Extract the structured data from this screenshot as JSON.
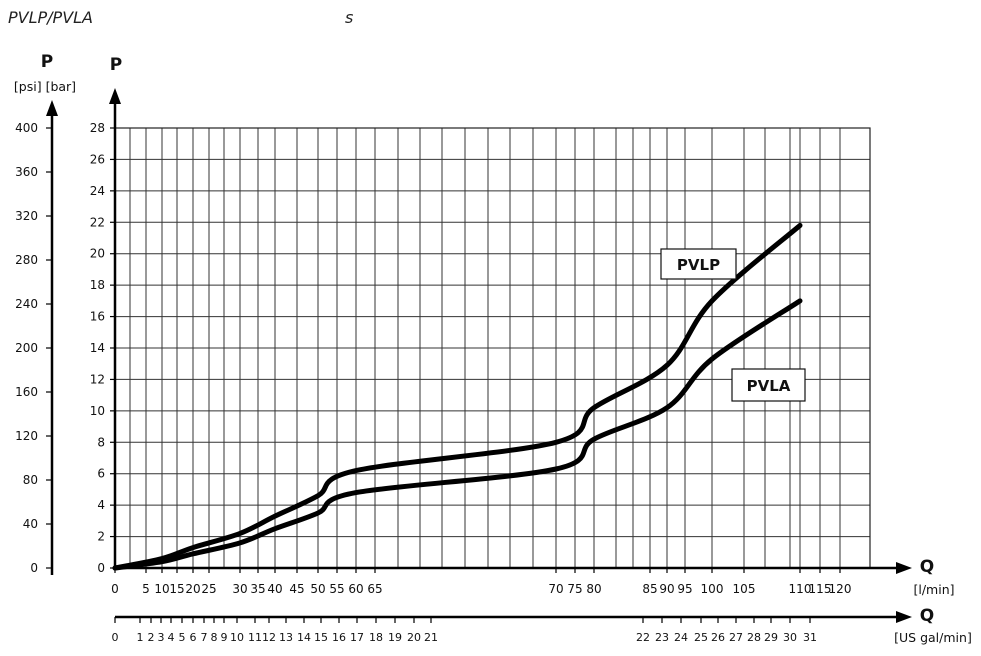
{
  "chart_data": {
    "type": "line",
    "title": "PVLP/PVLA",
    "subtitle": "s",
    "y_axis_left": {
      "name": "P",
      "units": "[psi] [bar]",
      "ticks": [
        0,
        40,
        80,
        120,
        160,
        200,
        240,
        280,
        320,
        360,
        400
      ]
    },
    "y_axis": {
      "name": "P",
      "range": [
        0,
        28
      ],
      "ticks": [
        0,
        2,
        4,
        6,
        8,
        10,
        12,
        14,
        16,
        18,
        20,
        22,
        24,
        26,
        28
      ]
    },
    "x_axis": {
      "name": "Q",
      "unit": "[l/min]",
      "range": [
        0,
        120
      ],
      "ticks": [
        0,
        5,
        10,
        15,
        20,
        25,
        30,
        35,
        40,
        45,
        50,
        55,
        60,
        65,
        70,
        75,
        80,
        85,
        90,
        95,
        100,
        105,
        110,
        115,
        120
      ],
      "tick_labels": [
        {
          "value": 0,
          "label": "0"
        },
        {
          "value": 5,
          "label": "5"
        },
        {
          "value": 10,
          "label": "10"
        },
        {
          "value": 15,
          "label": "15"
        },
        {
          "value": 20,
          "label": "20"
        },
        {
          "value": 25,
          "label": "25"
        },
        {
          "value": 30,
          "label": "30"
        },
        {
          "value": 35,
          "label": "35"
        },
        {
          "value": 40,
          "label": "40"
        },
        {
          "value": 45,
          "label": "45"
        },
        {
          "value": 50,
          "label": "50"
        },
        {
          "value": 55,
          "label": "55"
        },
        {
          "value": 60,
          "label": "60"
        },
        {
          "value": 65,
          "label": "65"
        },
        {
          "value": 70,
          "label": "70"
        },
        {
          "value": 75,
          "label": "75"
        },
        {
          "value": 80,
          "label": "80"
        },
        {
          "value": 85,
          "label": "85"
        },
        {
          "value": 90,
          "label": "90"
        },
        {
          "value": 95,
          "label": "95"
        },
        {
          "value": 100,
          "label": "100"
        },
        {
          "value": 105,
          "label": "105"
        },
        {
          "value": 110,
          "label": "110"
        },
        {
          "value": 115,
          "label": "115"
        },
        {
          "value": 120,
          "label": "120"
        }
      ]
    },
    "x_axis_secondary": {
      "name": "Q",
      "unit": "[US gal/min]",
      "ticks": [
        0,
        1,
        2,
        3,
        4,
        5,
        6,
        7,
        8,
        9,
        10,
        11,
        12,
        13,
        14,
        15,
        16,
        17,
        18,
        19,
        20,
        21,
        22,
        23,
        24,
        25,
        26,
        27,
        28,
        29,
        30,
        31
      ]
    },
    "grid": true,
    "series": [
      {
        "name": "PVLP",
        "x": [
          0,
          10,
          20,
          30,
          40,
          50,
          60,
          70,
          80,
          90,
          100,
          110
        ],
        "y": [
          0,
          0.6,
          1.3,
          2.2,
          3.3,
          4.6,
          6.2,
          8.0,
          10.2,
          12.9,
          17.0,
          21.8
        ]
      },
      {
        "name": "PVLA",
        "x": [
          0,
          10,
          20,
          30,
          40,
          50,
          60,
          70,
          80,
          90,
          100,
          110
        ],
        "y": [
          0,
          0.4,
          0.9,
          1.6,
          2.5,
          3.5,
          4.8,
          6.3,
          8.2,
          10.2,
          13.3,
          17.0
        ]
      }
    ]
  }
}
